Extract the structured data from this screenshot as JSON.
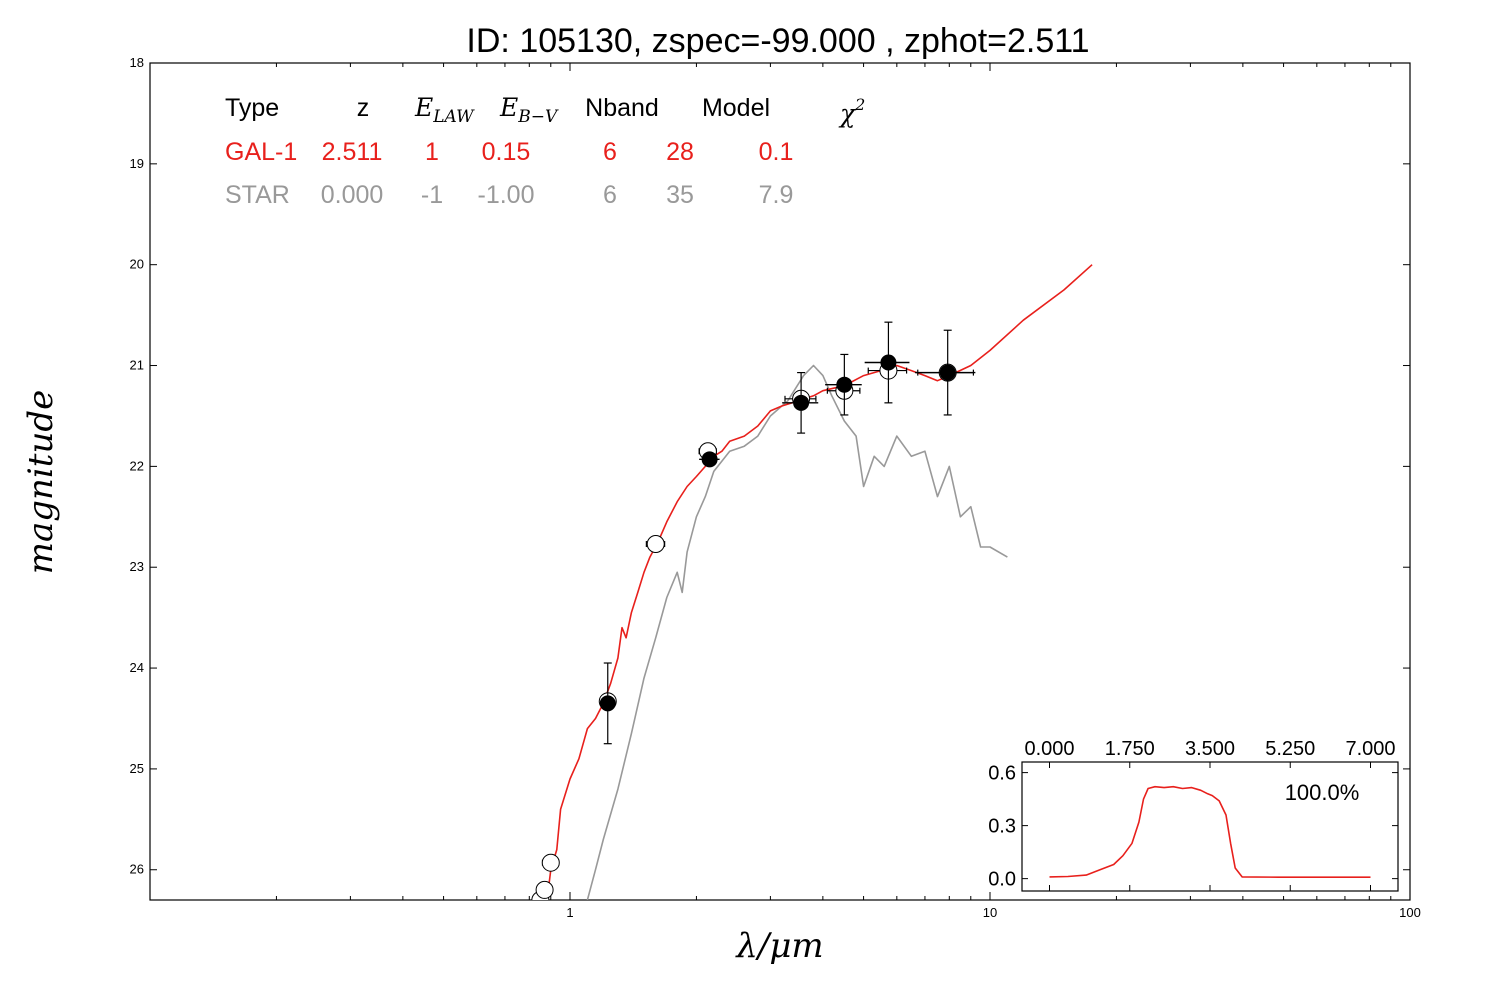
{
  "chart_data": {
    "type": "line",
    "title": "ID:  105130, zspec=-99.000 , zphot=2.511",
    "xlabel": "λ/μm",
    "ylabel": "magnitude",
    "x_scale": "log",
    "xlim": [
      0.1,
      100
    ],
    "ylim": [
      26.3,
      18
    ],
    "y_inverted": true,
    "x_ticks": [
      {
        "v": 1,
        "label": "1"
      },
      {
        "v": 10,
        "label": "10"
      },
      {
        "v": 100,
        "label": "100"
      }
    ],
    "y_ticks": [
      {
        "v": 18,
        "label": "18"
      },
      {
        "v": 19,
        "label": "19"
      },
      {
        "v": 20,
        "label": "20"
      },
      {
        "v": 21,
        "label": "21"
      },
      {
        "v": 22,
        "label": "22"
      },
      {
        "v": 23,
        "label": "23"
      },
      {
        "v": 24,
        "label": "24"
      },
      {
        "v": 25,
        "label": "25"
      },
      {
        "v": 26,
        "label": "26"
      }
    ],
    "fit_table": {
      "headers": [
        "Type",
        "z",
        "E_LAW",
        "E_B−V",
        "Nband",
        "Model",
        "χ²"
      ],
      "rows": [
        {
          "color": "#e8201c",
          "cells": [
            "GAL-1",
            "2.511",
            "1",
            "0.15",
            "6",
            "28",
            "0.1"
          ]
        },
        {
          "color": "#999999",
          "cells": [
            "STAR",
            "0.000",
            "-1",
            "-1.00",
            "6",
            "35",
            "7.9"
          ]
        }
      ]
    },
    "series": [
      {
        "name": "GAL-1",
        "color": "#e8201c",
        "points": [
          [
            0.87,
            26.5
          ],
          [
            0.9,
            26.0
          ],
          [
            0.93,
            25.8
          ],
          [
            0.95,
            25.4
          ],
          [
            1.0,
            25.1
          ],
          [
            1.05,
            24.9
          ],
          [
            1.1,
            24.6
          ],
          [
            1.15,
            24.5
          ],
          [
            1.2,
            24.35
          ],
          [
            1.25,
            24.15
          ],
          [
            1.3,
            23.9
          ],
          [
            1.33,
            23.6
          ],
          [
            1.36,
            23.7
          ],
          [
            1.4,
            23.45
          ],
          [
            1.45,
            23.25
          ],
          [
            1.5,
            23.05
          ],
          [
            1.55,
            22.9
          ],
          [
            1.62,
            22.75
          ],
          [
            1.7,
            22.55
          ],
          [
            1.8,
            22.35
          ],
          [
            1.9,
            22.2
          ],
          [
            2.0,
            22.1
          ],
          [
            2.1,
            22.0
          ],
          [
            2.2,
            21.9
          ],
          [
            2.3,
            21.85
          ],
          [
            2.4,
            21.75
          ],
          [
            2.6,
            21.7
          ],
          [
            2.8,
            21.6
          ],
          [
            3.0,
            21.45
          ],
          [
            3.2,
            21.4
          ],
          [
            3.5,
            21.35
          ],
          [
            3.8,
            21.3
          ],
          [
            4.0,
            21.25
          ],
          [
            4.5,
            21.2
          ],
          [
            5.0,
            21.1
          ],
          [
            5.5,
            21.05
          ],
          [
            6.0,
            21.0
          ],
          [
            6.5,
            21.05
          ],
          [
            7.0,
            21.1
          ],
          [
            7.5,
            21.15
          ],
          [
            8.0,
            21.1
          ],
          [
            9.0,
            21.0
          ],
          [
            10.0,
            20.85
          ],
          [
            12.0,
            20.55
          ],
          [
            15.0,
            20.25
          ],
          [
            17.5,
            20.0
          ]
        ]
      },
      {
        "name": "STAR",
        "color": "#999999",
        "points": [
          [
            1.1,
            26.3
          ],
          [
            1.15,
            26.0
          ],
          [
            1.2,
            25.7
          ],
          [
            1.3,
            25.2
          ],
          [
            1.4,
            24.65
          ],
          [
            1.5,
            24.1
          ],
          [
            1.6,
            23.7
          ],
          [
            1.7,
            23.3
          ],
          [
            1.8,
            23.05
          ],
          [
            1.85,
            23.25
          ],
          [
            1.9,
            22.85
          ],
          [
            2.0,
            22.5
          ],
          [
            2.1,
            22.3
          ],
          [
            2.2,
            22.05
          ],
          [
            2.4,
            21.85
          ],
          [
            2.6,
            21.8
          ],
          [
            2.8,
            21.7
          ],
          [
            3.0,
            21.5
          ],
          [
            3.3,
            21.35
          ],
          [
            3.6,
            21.1
          ],
          [
            3.8,
            21.0
          ],
          [
            4.0,
            21.1
          ],
          [
            4.2,
            21.3
          ],
          [
            4.5,
            21.55
          ],
          [
            4.8,
            21.7
          ],
          [
            5.0,
            22.2
          ],
          [
            5.3,
            21.9
          ],
          [
            5.6,
            22.0
          ],
          [
            6.0,
            21.7
          ],
          [
            6.5,
            21.9
          ],
          [
            7.0,
            21.85
          ],
          [
            7.5,
            22.3
          ],
          [
            8.0,
            22.0
          ],
          [
            8.5,
            22.5
          ],
          [
            9.0,
            22.4
          ],
          [
            9.5,
            22.8
          ],
          [
            10.0,
            22.8
          ],
          [
            11.0,
            22.9
          ]
        ]
      }
    ],
    "observed_points": [
      {
        "x": 1.23,
        "y": 24.35,
        "xerr": 0.04,
        "yerr": 0.4
      },
      {
        "x": 2.15,
        "y": 21.93,
        "xerr": 0.12,
        "yerr": 0.05
      },
      {
        "x": 3.55,
        "y": 21.37,
        "xerr": 0.35,
        "yerr": 0.3
      },
      {
        "x": 4.5,
        "y": 21.19,
        "xerr": 0.45,
        "yerr": 0.3
      },
      {
        "x": 5.73,
        "y": 20.97,
        "xerr": 0.7,
        "yerr": 0.4
      },
      {
        "x": 7.93,
        "y": 21.07,
        "xerr": 1.3,
        "yerr": 0.42
      }
    ],
    "model_points": [
      {
        "x": 0.85,
        "y": 26.3,
        "xerr": 0.03
      },
      {
        "x": 0.87,
        "y": 26.2,
        "xerr": 0.03
      },
      {
        "x": 0.9,
        "y": 25.93,
        "xerr": 0.04
      },
      {
        "x": 1.23,
        "y": 24.33,
        "xerr": 0.04
      },
      {
        "x": 1.6,
        "y": 22.77,
        "xerr": 0.08
      },
      {
        "x": 2.13,
        "y": 21.85,
        "xerr": 0.1
      },
      {
        "x": 3.55,
        "y": 21.33,
        "xerr": 0.3
      },
      {
        "x": 4.5,
        "y": 21.25,
        "xerr": 0.4
      },
      {
        "x": 5.73,
        "y": 21.05,
        "xerr": 0.6
      },
      {
        "x": 7.93,
        "y": 21.07,
        "xerr": 1.2
      }
    ],
    "inset": {
      "type": "line",
      "color": "#e8201c",
      "x_ticks": [
        {
          "v": 0,
          "label": "0.000"
        },
        {
          "v": 1.75,
          "label": "1.750"
        },
        {
          "v": 3.5,
          "label": "3.500"
        },
        {
          "v": 5.25,
          "label": "5.250"
        },
        {
          "v": 7.0,
          "label": "7.000"
        }
      ],
      "y_ticks": [
        {
          "v": 0.0,
          "label": "0.0"
        },
        {
          "v": 0.3,
          "label": "0.3"
        },
        {
          "v": 0.6,
          "label": "0.6"
        }
      ],
      "xlim": [
        -0.6,
        7.6
      ],
      "ylim": [
        -0.07,
        0.66
      ],
      "annotation": "100.0%",
      "points": [
        [
          0,
          0.01
        ],
        [
          0.4,
          0.012
        ],
        [
          0.8,
          0.02
        ],
        [
          1.1,
          0.05
        ],
        [
          1.4,
          0.08
        ],
        [
          1.6,
          0.13
        ],
        [
          1.8,
          0.2
        ],
        [
          1.95,
          0.32
        ],
        [
          2.05,
          0.45
        ],
        [
          2.15,
          0.51
        ],
        [
          2.3,
          0.52
        ],
        [
          2.5,
          0.515
        ],
        [
          2.7,
          0.52
        ],
        [
          2.9,
          0.51
        ],
        [
          3.1,
          0.515
        ],
        [
          3.3,
          0.5
        ],
        [
          3.45,
          0.48
        ],
        [
          3.55,
          0.47
        ],
        [
          3.7,
          0.44
        ],
        [
          3.85,
          0.36
        ],
        [
          3.95,
          0.2
        ],
        [
          4.05,
          0.06
        ],
        [
          4.2,
          0.01
        ],
        [
          5.0,
          0.008
        ],
        [
          6.0,
          0.008
        ],
        [
          7.0,
          0.008
        ]
      ]
    }
  }
}
